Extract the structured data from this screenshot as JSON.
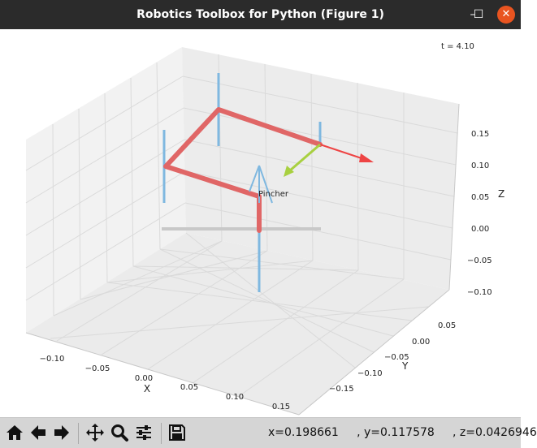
{
  "window": {
    "title": "Robotics Toolbox for Python (Figure 1)",
    "minimize_glyph": "–",
    "maximize_glyph": "☐",
    "close_glyph": "✕"
  },
  "plot": {
    "time_label": "t = 4.10",
    "robot_name": "Pincher",
    "x_axis": {
      "label": "X",
      "ticks": [
        "−0.10",
        "−0.05",
        "0.00",
        "0.05",
        "0.10",
        "0.15"
      ]
    },
    "y_axis": {
      "label": "Y",
      "ticks": [
        "0.05",
        "0.00",
        "−0.05",
        "−0.10",
        "−0.15"
      ]
    },
    "z_axis": {
      "label": "Z",
      "ticks": [
        "0.15",
        "0.10",
        "0.05",
        "0.00",
        "−0.05",
        "−0.10"
      ]
    },
    "colors": {
      "pane": "#f2f2f2",
      "grid": "#d9d9d9",
      "link": "#e06666",
      "joint_axis": "#7fb8e0",
      "shadow": "#c8c8c8",
      "x_arrow": "#ee4444",
      "y_arrow": "#a8d040",
      "z_arrow": "#7fb8e0"
    }
  },
  "toolbar": {
    "buttons": [
      {
        "name": "home-icon"
      },
      {
        "name": "back-arrow-icon"
      },
      {
        "name": "forward-arrow-icon"
      },
      {
        "name": "pan-icon"
      },
      {
        "name": "zoom-icon"
      },
      {
        "name": "subplots-config-icon"
      },
      {
        "name": "save-icon"
      }
    ],
    "coords_text": "x=0.198661     , y=0.117578     , z=0.0426946"
  }
}
